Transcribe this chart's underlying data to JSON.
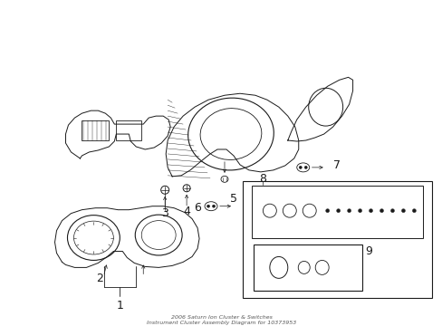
{
  "title_line1": "2006 Saturn Ion Cluster & Switches",
  "title_line2": "Instrument Cluster Assembly Diagram for 10373953",
  "bg_color": "#ffffff",
  "line_color": "#1a1a1a",
  "fig_width": 4.89,
  "fig_height": 3.6,
  "dpi": 100
}
